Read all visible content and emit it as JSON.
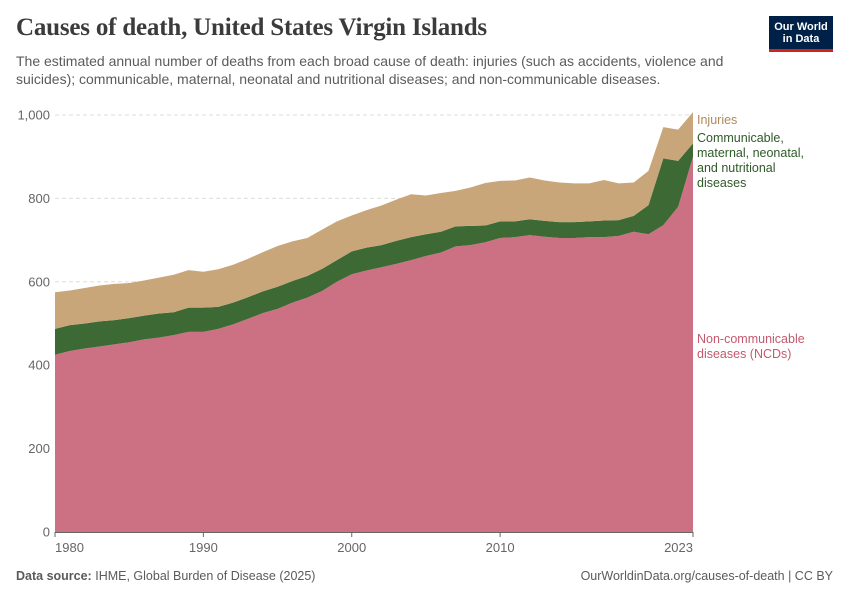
{
  "header": {
    "title": "Causes of death, United States Virgin Islands",
    "subtitle": "The estimated annual number of deaths from each broad cause of death: injuries (such as accidents, violence and suicides); communicable, maternal, neonatal and nutritional diseases; and non-communicable diseases.",
    "logo_line1": "Our World",
    "logo_line2": "in Data"
  },
  "footer": {
    "source_label": "Data source:",
    "source_text": "IHME, Global Burden of Disease (2025)",
    "url_text": "OurWorldinData.org/causes-of-death | CC BY"
  },
  "colors": {
    "ncd": "#cb7183",
    "communicable": "#3d6a34",
    "injuries": "#c9a67a",
    "injuries_label": "#b0895b",
    "communicable_label": "#2f5a28",
    "ncd_label": "#c25a6e",
    "grid": "#dddddd",
    "axis": "#666666"
  },
  "chart_data": {
    "type": "area",
    "stacked": true,
    "title": "Causes of death, United States Virgin Islands",
    "xlabel": "",
    "ylabel": "",
    "xlim": [
      1980,
      2023
    ],
    "ylim": [
      0,
      1000
    ],
    "x_ticks": [
      1980,
      1990,
      2000,
      2010,
      2023
    ],
    "y_ticks": [
      0,
      200,
      400,
      600,
      800,
      1000
    ],
    "y_tick_labels": [
      "0",
      "200",
      "400",
      "600",
      "800",
      "1,000"
    ],
    "x": [
      1980,
      1981,
      1982,
      1983,
      1984,
      1985,
      1986,
      1987,
      1988,
      1989,
      1990,
      1991,
      1992,
      1993,
      1994,
      1995,
      1996,
      1997,
      1998,
      1999,
      2000,
      2001,
      2002,
      2003,
      2004,
      2005,
      2006,
      2007,
      2008,
      2009,
      2010,
      2011,
      2012,
      2013,
      2014,
      2015,
      2016,
      2017,
      2018,
      2019,
      2020,
      2021,
      2022,
      2023
    ],
    "series": [
      {
        "name": "Non-communicable diseases (NCDs)",
        "label_lines": [
          "Non-communicable",
          "diseases (NCDs)"
        ],
        "values": [
          425,
          434,
          440,
          445,
          450,
          455,
          462,
          466,
          472,
          480,
          480,
          487,
          498,
          511,
          525,
          535,
          550,
          562,
          578,
          600,
          618,
          627,
          635,
          643,
          652,
          662,
          670,
          685,
          688,
          695,
          705,
          707,
          712,
          708,
          705,
          705,
          707,
          707,
          710,
          720,
          714,
          736,
          780,
          900
        ]
      },
      {
        "name": "Communicable, maternal, neonatal, and nutritional diseases",
        "label_lines": [
          "Communicable,",
          "maternal, neonatal,",
          "and nutritional",
          "diseases"
        ],
        "values": [
          62,
          62,
          60,
          60,
          58,
          58,
          57,
          58,
          55,
          58,
          58,
          53,
          52,
          52,
          52,
          53,
          52,
          52,
          53,
          52,
          55,
          55,
          53,
          55,
          55,
          52,
          50,
          48,
          46,
          40,
          40,
          38,
          38,
          38,
          38,
          38,
          38,
          40,
          38,
          38,
          70,
          160,
          110,
          32
        ]
      },
      {
        "name": "Injuries",
        "label_lines": [
          "Injuries"
        ],
        "values": [
          88,
          83,
          85,
          86,
          87,
          84,
          84,
          86,
          90,
          90,
          86,
          90,
          91,
          92,
          94,
          98,
          95,
          91,
          94,
          93,
          86,
          90,
          95,
          99,
          103,
          93,
          93,
          85,
          92,
          102,
          97,
          98,
          100,
          97,
          95,
          93,
          91,
          97,
          88,
          80,
          82,
          75,
          75,
          75
        ]
      }
    ]
  }
}
